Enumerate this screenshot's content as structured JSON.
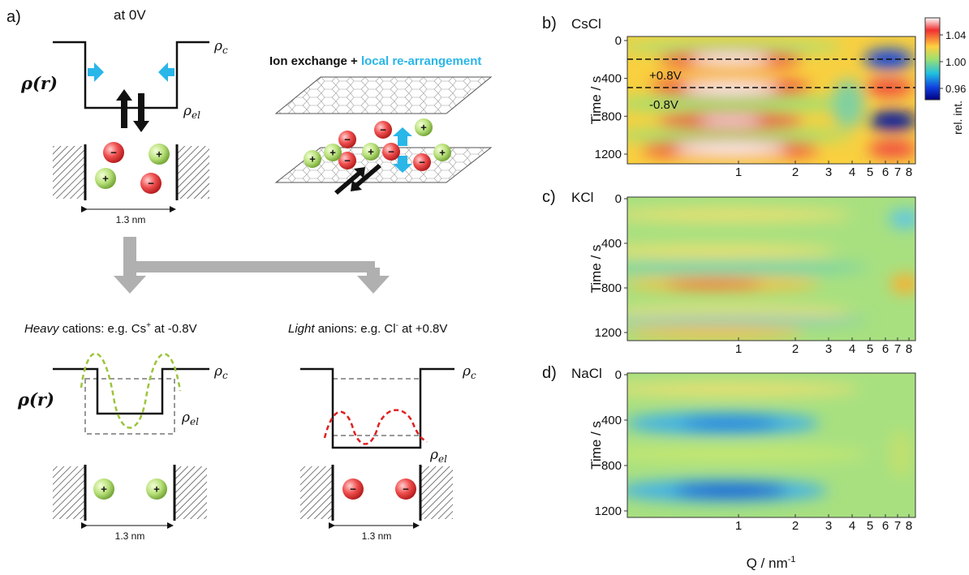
{
  "panel_a": {
    "label": "a)",
    "title": "at 0V",
    "rho_r": "ρ(r)",
    "rho": "ρ",
    "sub_c": "c",
    "sub_el": "el",
    "scale": "1.3 nm",
    "scheme_title": {
      "black": "Ion exchange + ",
      "cyan": "local re-arrangement"
    },
    "case_heavy": {
      "italic": "Heavy",
      "text": " cations: e.g. Cs",
      "sup": "+",
      "tail": " at -0.8V"
    },
    "case_light": {
      "italic": "Light",
      "text": " anions: e.g. Cl",
      "sup": "-",
      "tail": " at +0.8V"
    }
  },
  "ions": {
    "plus": "+",
    "minus": "−"
  },
  "panels": [
    {
      "label": "b)",
      "salt": "CsCl",
      "annotations": [
        "+0.8V",
        "-0.8V"
      ]
    },
    {
      "label": "c)",
      "salt": "KCl"
    },
    {
      "label": "d)",
      "salt": "NaCl"
    }
  ],
  "y_axis": {
    "title": "Time / s",
    "ticks": [
      "0",
      "400",
      "800",
      "1200"
    ]
  },
  "x_axis": {
    "title": "Q / nm",
    "sup": "-1",
    "ticks": [
      "1",
      "2",
      "3",
      "4",
      "5",
      "6",
      "7",
      "8"
    ]
  },
  "colorbar": {
    "title": "rel. int.",
    "ticks": [
      "1.04",
      "1.00",
      "0.96"
    ]
  }
}
